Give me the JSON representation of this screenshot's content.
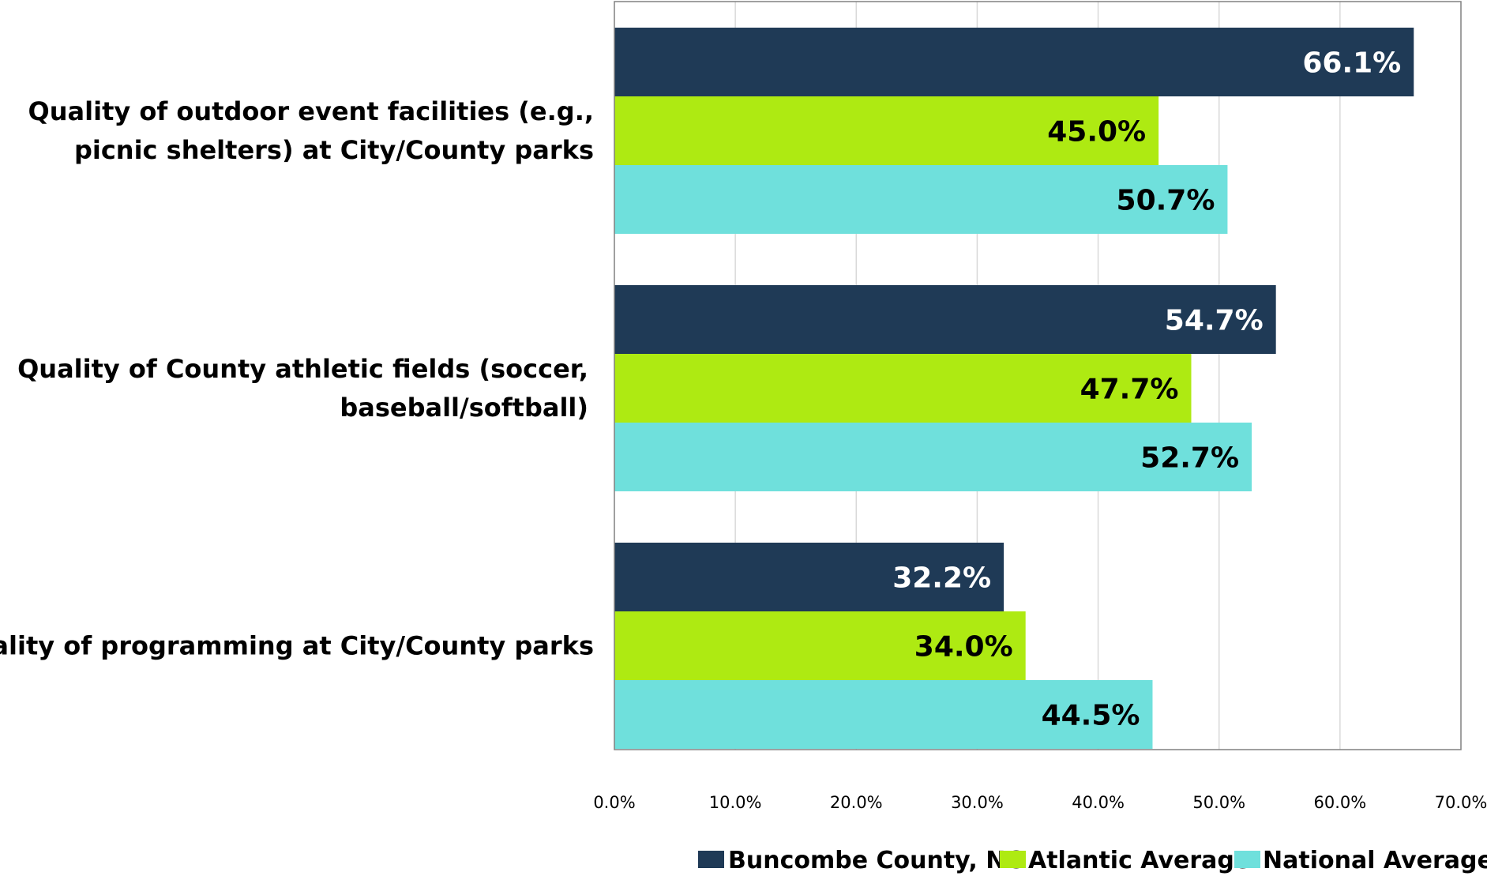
{
  "chart_data": {
    "type": "bar",
    "orientation": "horizontal",
    "categories": [
      [
        "Quality of outdoor event facilities (e.g.,",
        "picnic shelters) at City/County parks"
      ],
      [
        "Quality of County athletic fields (soccer,",
        "baseball/softball)"
      ],
      [
        "Quality of programming at City/County parks"
      ]
    ],
    "series": [
      {
        "name": "Buncombe County, NC",
        "color": "#1f3a56",
        "label_color": "#ffffff",
        "values": [
          66.1,
          54.7,
          32.2
        ],
        "labels": [
          "66.1%",
          "54.7%",
          "32.2%"
        ]
      },
      {
        "name": "Atlantic Average",
        "color": "#aeea12",
        "label_color": "#000000",
        "values": [
          45.0,
          47.7,
          34.0
        ],
        "labels": [
          "45.0%",
          "47.7%",
          "34.0%"
        ]
      },
      {
        "name": "National Average",
        "color": "#6fe0dc",
        "label_color": "#000000",
        "values": [
          50.7,
          52.7,
          44.5
        ],
        "labels": [
          "50.7%",
          "52.7%",
          "44.5%"
        ]
      }
    ],
    "xlim": [
      0,
      70
    ],
    "x_ticks": [
      0,
      10,
      20,
      30,
      40,
      50,
      60,
      70
    ],
    "x_tick_labels": [
      "0.0%",
      "10.0%",
      "20.0%",
      "30.0%",
      "40.0%",
      "50.0%",
      "60.0%",
      "70.0%"
    ],
    "grid": true,
    "legend_position": "bottom-right",
    "title": "",
    "xlabel": "",
    "ylabel": ""
  }
}
